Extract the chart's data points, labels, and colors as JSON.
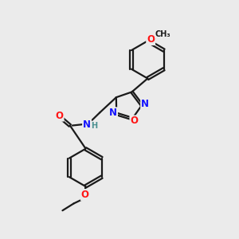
{
  "bg_color": "#ebebeb",
  "bond_color": "#1a1a1a",
  "bond_width": 1.6,
  "atom_colors": {
    "N": "#1414ff",
    "O": "#ff1414",
    "H": "#4a9090",
    "C": "#1a1a1a"
  },
  "font_size_atom": 8.5,
  "font_size_small": 7.0,
  "dbl_off": 0.05
}
